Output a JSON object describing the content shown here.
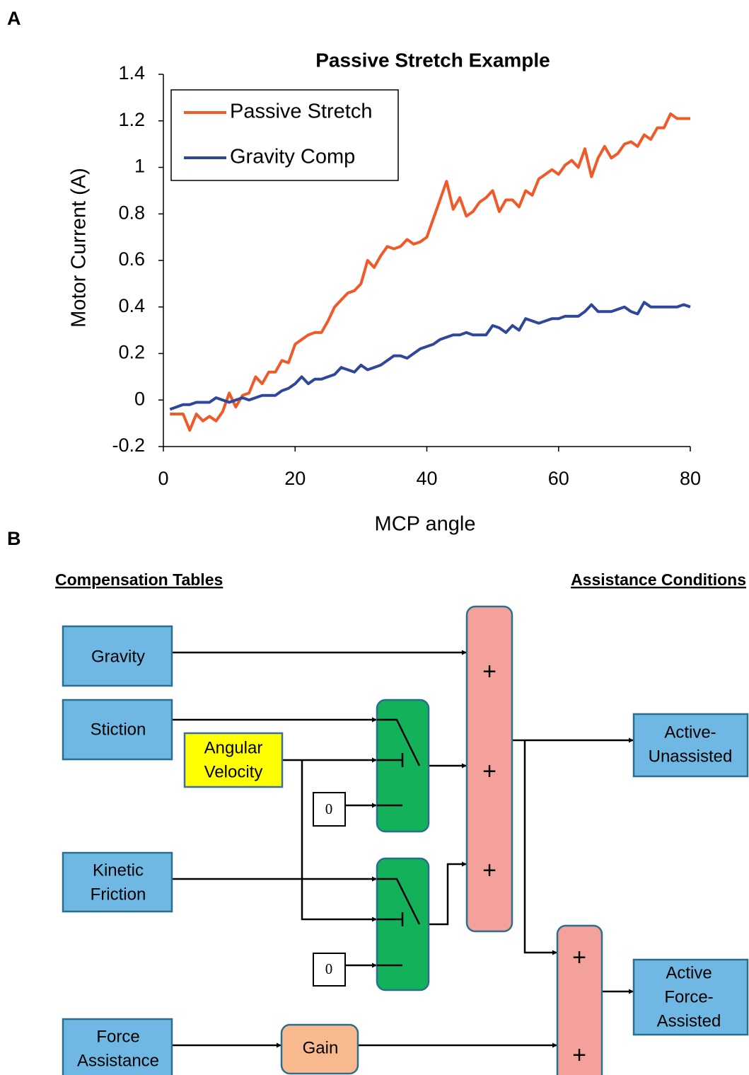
{
  "panel_labels": [
    "A",
    "B"
  ],
  "chart_data": {
    "type": "line",
    "title": "Passive Stretch Example",
    "xlabel": "MCP angle",
    "ylabel": "Motor Current (A)",
    "x": [
      1,
      2,
      3,
      4,
      5,
      6,
      7,
      8,
      9,
      10,
      11,
      12,
      13,
      14,
      15,
      16,
      17,
      18,
      19,
      20,
      21,
      22,
      23,
      24,
      25,
      26,
      27,
      28,
      29,
      30,
      31,
      32,
      33,
      34,
      35,
      36,
      37,
      38,
      39,
      40,
      41,
      42,
      43,
      44,
      45,
      46,
      47,
      48,
      49,
      50,
      51,
      52,
      53,
      54,
      55,
      56,
      57,
      58,
      59,
      60,
      61,
      62,
      63,
      64,
      65,
      66,
      67,
      68,
      69,
      70,
      71,
      72,
      73,
      74,
      75,
      76,
      77,
      78,
      79,
      80
    ],
    "series": [
      {
        "name": "Passive Stretch",
        "color": "#f05a28",
        "values": [
          -0.06,
          -0.06,
          -0.06,
          -0.13,
          -0.06,
          -0.09,
          -0.07,
          -0.09,
          -0.05,
          0.03,
          -0.03,
          0.02,
          0.03,
          0.1,
          0.07,
          0.12,
          0.12,
          0.17,
          0.16,
          0.24,
          0.26,
          0.28,
          0.29,
          0.29,
          0.34,
          0.4,
          0.43,
          0.46,
          0.47,
          0.5,
          0.6,
          0.57,
          0.62,
          0.66,
          0.65,
          0.66,
          0.69,
          0.67,
          0.68,
          0.7,
          0.78,
          0.86,
          0.94,
          0.82,
          0.87,
          0.79,
          0.81,
          0.85,
          0.87,
          0.9,
          0.81,
          0.86,
          0.86,
          0.83,
          0.9,
          0.88,
          0.95,
          0.97,
          0.99,
          0.97,
          1.01,
          1.03,
          1.0,
          1.08,
          0.96,
          1.04,
          1.09,
          1.04,
          1.06,
          1.1,
          1.11,
          1.09,
          1.14,
          1.12,
          1.17,
          1.17,
          1.23,
          1.21,
          1.21,
          1.21
        ]
      },
      {
        "name": "Gravity Comp",
        "color": "#2e479a",
        "values": [
          -0.04,
          -0.03,
          -0.02,
          -0.02,
          -0.01,
          -0.01,
          -0.01,
          0.01,
          0.0,
          -0.01,
          0.0,
          0.01,
          0.0,
          0.01,
          0.02,
          0.02,
          0.02,
          0.04,
          0.05,
          0.07,
          0.1,
          0.07,
          0.09,
          0.09,
          0.1,
          0.11,
          0.14,
          0.13,
          0.12,
          0.15,
          0.13,
          0.14,
          0.15,
          0.17,
          0.19,
          0.19,
          0.18,
          0.2,
          0.22,
          0.23,
          0.24,
          0.26,
          0.27,
          0.28,
          0.28,
          0.29,
          0.28,
          0.28,
          0.28,
          0.32,
          0.31,
          0.29,
          0.32,
          0.3,
          0.35,
          0.34,
          0.33,
          0.34,
          0.35,
          0.35,
          0.36,
          0.36,
          0.36,
          0.38,
          0.41,
          0.38,
          0.38,
          0.38,
          0.39,
          0.4,
          0.38,
          0.37,
          0.42,
          0.4,
          0.4,
          0.4,
          0.4,
          0.4,
          0.41,
          0.4
        ]
      }
    ],
    "xlim": [
      0,
      80
    ],
    "xticks": [
      0,
      20,
      40,
      60,
      80
    ],
    "ylim": [
      -0.2,
      1.4
    ],
    "yticks": [
      -0.2,
      0,
      0.2,
      0.4,
      0.6,
      0.8,
      1,
      1.2,
      1.4
    ],
    "grid": false,
    "legend": "upper-left"
  },
  "diagram": {
    "headings": {
      "left": "Compensation Tables",
      "right": "Assistance Conditions"
    },
    "nodes": {
      "gravity": [
        "Gravity"
      ],
      "stiction": [
        "Stiction"
      ],
      "angular_velocity": [
        "Angular",
        "Velocity"
      ],
      "zero_1": [
        "0"
      ],
      "zero_2": [
        "0"
      ],
      "kinetic_friction": [
        "Kinetic",
        "Friction"
      ],
      "force_assistance": [
        "Force",
        "Assistance"
      ],
      "gain": [
        "Gain"
      ],
      "sum_1": [
        "+",
        "+",
        "+"
      ],
      "sum_2": [
        "+",
        "+"
      ],
      "active_unassisted": [
        "Active-",
        "Unassisted"
      ],
      "active_force_assisted": [
        "Active",
        "Force-",
        "Assisted"
      ]
    }
  }
}
